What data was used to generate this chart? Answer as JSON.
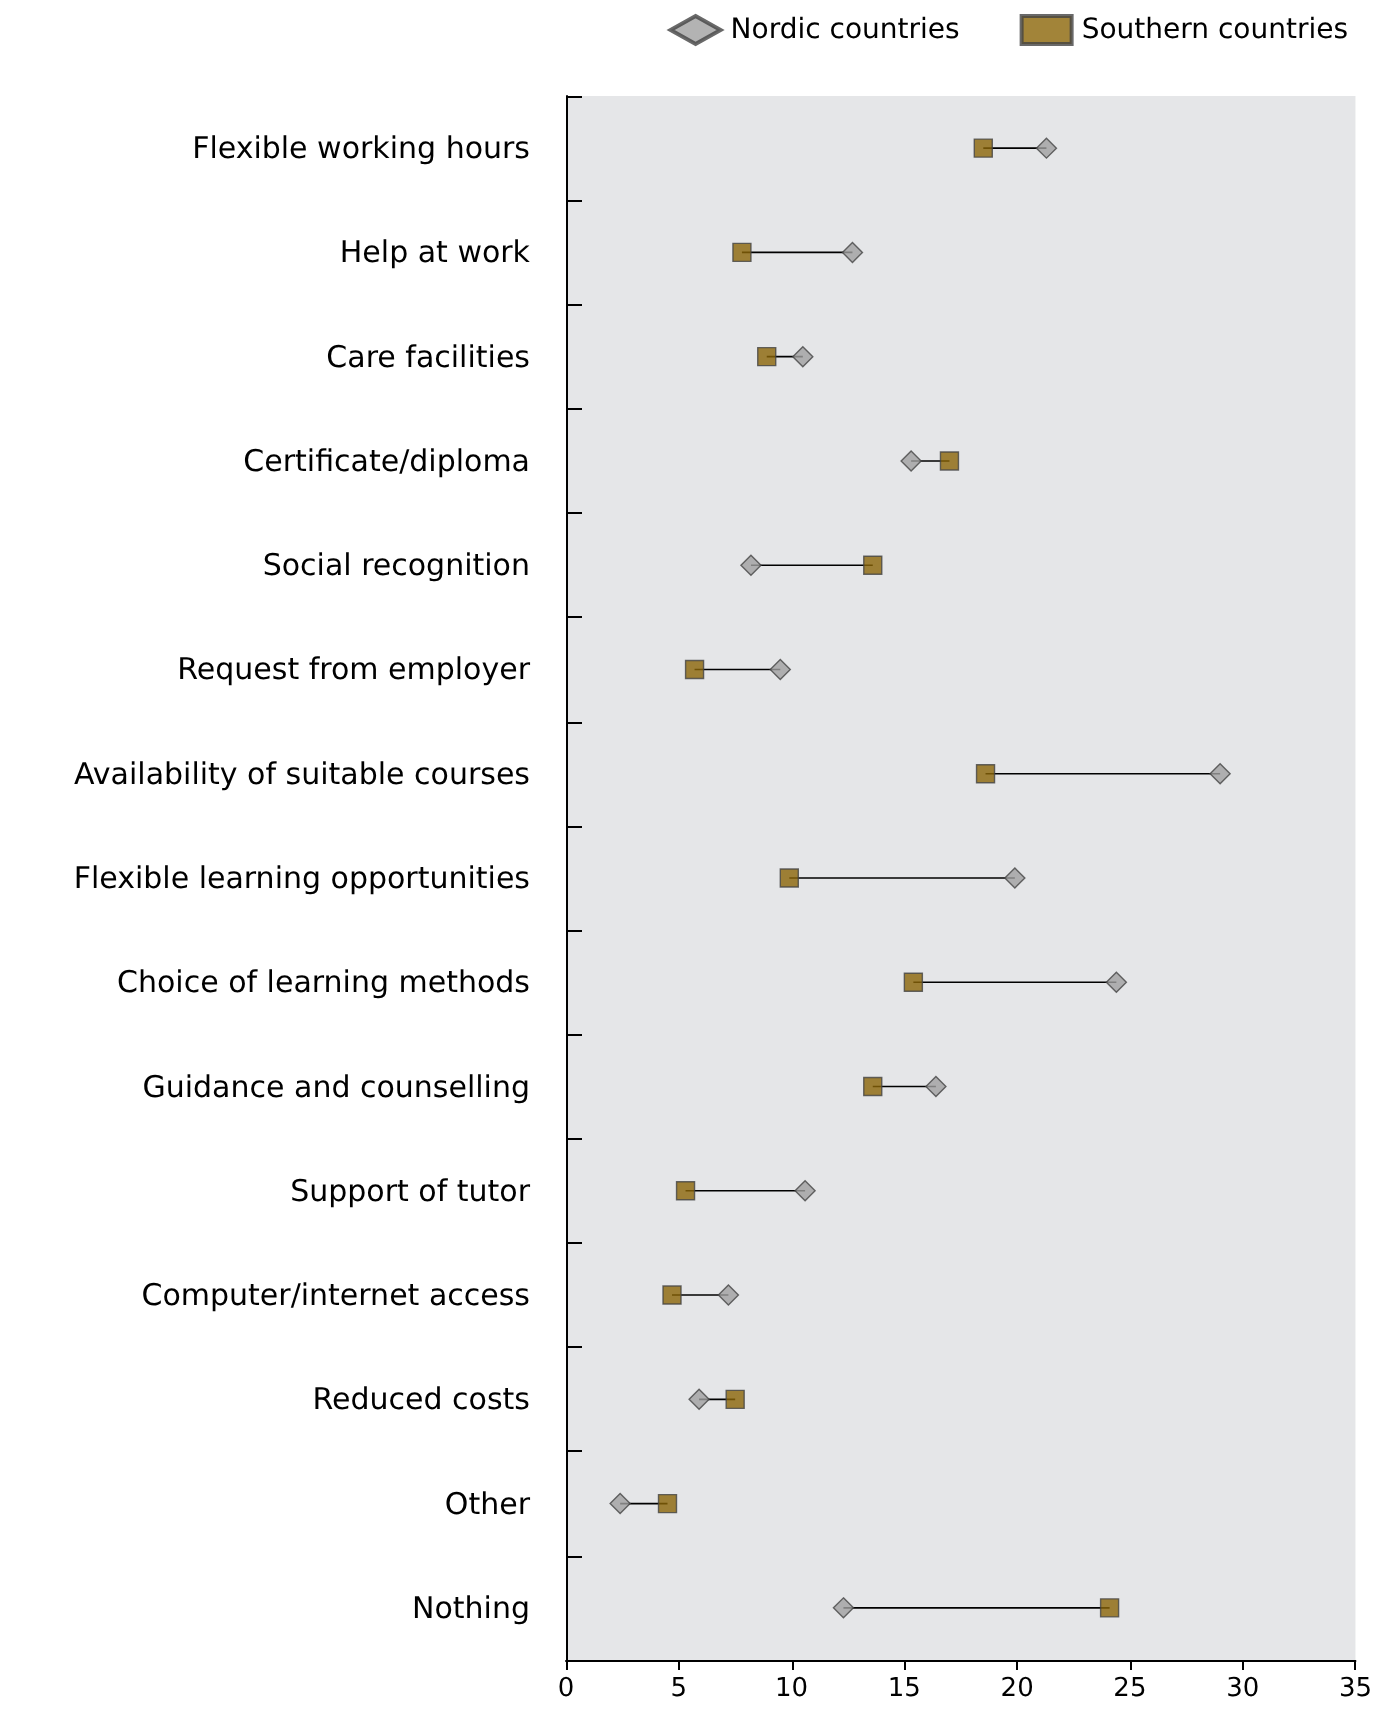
{
  "chart_data": {
    "type": "scatter",
    "orientation": "horizontal",
    "categories": [
      "Flexible working hours",
      "Help at work",
      "Care facilities",
      "Certificate/diploma",
      "Social recognition",
      "Request from employer",
      "Availability of suitable courses",
      "Flexible learning opportunities",
      "Choice of learning methods",
      "Guidance and counselling",
      "Support of tutor",
      "Computer/internet access",
      "Reduced costs",
      "Other",
      "Nothing"
    ],
    "series": [
      {
        "name": "Nordic countries",
        "color": "#a0a0a0",
        "marker": "diamond",
        "values": [
          21.3,
          12.7,
          10.5,
          15.3,
          8.2,
          9.5,
          29.0,
          19.9,
          24.4,
          16.4,
          10.6,
          7.2,
          5.9,
          2.4,
          12.3
        ]
      },
      {
        "name": "Southern countries",
        "color": "#8b6508",
        "marker": "square",
        "values": [
          18.5,
          7.8,
          8.9,
          17.0,
          13.6,
          5.7,
          18.6,
          9.9,
          15.4,
          13.6,
          5.3,
          4.7,
          7.5,
          4.5,
          24.1
        ]
      }
    ],
    "xlim": [
      0,
      35
    ],
    "xticks": [
      0,
      5,
      10,
      15,
      20,
      25,
      30,
      35
    ],
    "grid": false,
    "legend": "top right"
  }
}
